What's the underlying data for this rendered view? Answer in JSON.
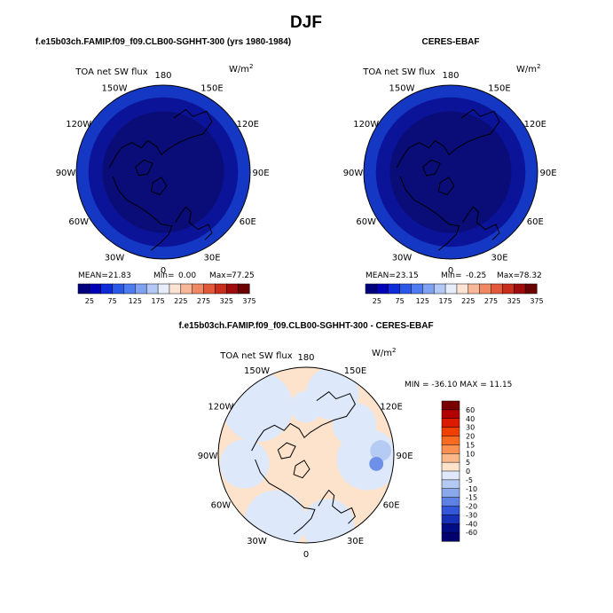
{
  "title": "DJF",
  "panels": [
    {
      "id": "model",
      "subtitle": "f.e15b03ch.FAMIP.f09_f09.CLB00-SGHHT-300 (yrs 1980-1984)",
      "variable": "TOA net SW flux",
      "units_base": "W/m",
      "units_exp": "2",
      "stats": {
        "mean_label": "MEAN=",
        "mean": "21.83",
        "min_label": "Min=",
        "min": "0.00",
        "max_label": "Max=",
        "max": "77.25"
      }
    },
    {
      "id": "obs",
      "subtitle": "CERES-EBAF",
      "variable": "TOA net SW flux",
      "units_base": "W/m",
      "units_exp": "2",
      "stats": {
        "mean_label": "MEAN=",
        "mean": "23.15",
        "min_label": "Min=",
        "min": "-0.25",
        "max_label": "Max=",
        "max": "78.32"
      }
    },
    {
      "id": "diff",
      "subtitle": "f.e15b03ch.FAMIP.f09_f09.CLB00-SGHHT-300 - CERES-EBAF",
      "variable": "TOA net SW flux",
      "units_base": "W/m",
      "units_exp": "2",
      "stats_text": "MIN = -36.10 MAX =  11.15"
    }
  ],
  "lon_labels": [
    "180",
    "150E",
    "120E",
    "90E",
    "60E",
    "30E",
    "0",
    "30W",
    "60W",
    "90W",
    "120W",
    "150W"
  ],
  "abs_colorbar": {
    "labels": [
      "25",
      "75",
      "125",
      "175",
      "225",
      "275",
      "325",
      "375"
    ],
    "colors": [
      "#00007f",
      "#0000b8",
      "#0d2bd6",
      "#2a57e8",
      "#4f7bf0",
      "#7fa2f2",
      "#b3c8f5",
      "#e6eefb",
      "#fde3d3",
      "#f9b79a",
      "#f08863",
      "#e2583a",
      "#c92d1b",
      "#9e0c0c",
      "#6b0000"
    ]
  },
  "diff_colorbar": {
    "labels": [
      "60",
      "40",
      "30",
      "20",
      "15",
      "10",
      "5",
      "0",
      "-5",
      "-10",
      "-15",
      "-20",
      "-30",
      "-40",
      "-60"
    ],
    "colors": [
      "#7a0000",
      "#b30000",
      "#dc1a00",
      "#f04000",
      "#f86a20",
      "#fb9050",
      "#fcb88a",
      "#fde3cc",
      "#dfe9fb",
      "#b5caf3",
      "#8aa8ec",
      "#5d82e4",
      "#3357d8",
      "#1630b8",
      "#000d87",
      "#00006e"
    ]
  },
  "colors": {
    "polar_core": "#0a0d78",
    "polar_mid": "#0b1499",
    "polar_edge": "#1438c4",
    "diff_bg": "#fde3cc",
    "diff_blue": "#dde8fa",
    "diff_blue2": "#b6cbf3"
  }
}
